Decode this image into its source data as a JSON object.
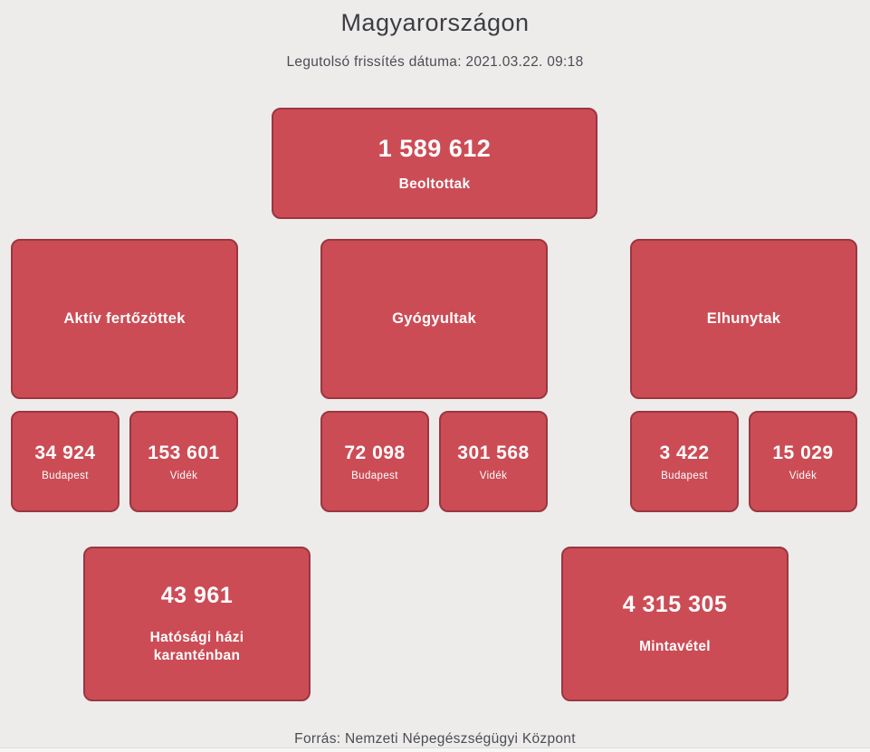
{
  "page": {
    "title": "Magyarországon",
    "subtitle": "Legutolsó frissítés dátuma: 2021.03.22. 09:18",
    "footer": "Forrás: Nemzeti Népegészségügyi Központ"
  },
  "colors": {
    "card_background": "#cc4c55",
    "card_border": "#9b3640",
    "page_background": "#edeceb",
    "card_text": "#ffffff",
    "title_text": "#3c3c44"
  },
  "stats": {
    "beoltottak": {
      "value": "1 589 612",
      "label": "Beoltottak"
    },
    "aktiv": {
      "label": "Aktív fertőzöttek",
      "budapest": {
        "value": "34 924",
        "label": "Budapest"
      },
      "videk": {
        "value": "153 601",
        "label": "Vidék"
      }
    },
    "gyogyultak": {
      "label": "Gyógyultak",
      "budapest": {
        "value": "72 098",
        "label": "Budapest"
      },
      "videk": {
        "value": "301 568",
        "label": "Vidék"
      }
    },
    "elhunytak": {
      "label": "Elhunytak",
      "budapest": {
        "value": "3 422",
        "label": "Budapest"
      },
      "videk": {
        "value": "15 029",
        "label": "Vidék"
      }
    },
    "karanten": {
      "value": "43 961",
      "label": "Hatósági házi karanténban"
    },
    "mintavetel": {
      "value": "4 315 305",
      "label": "Mintavétel"
    }
  }
}
